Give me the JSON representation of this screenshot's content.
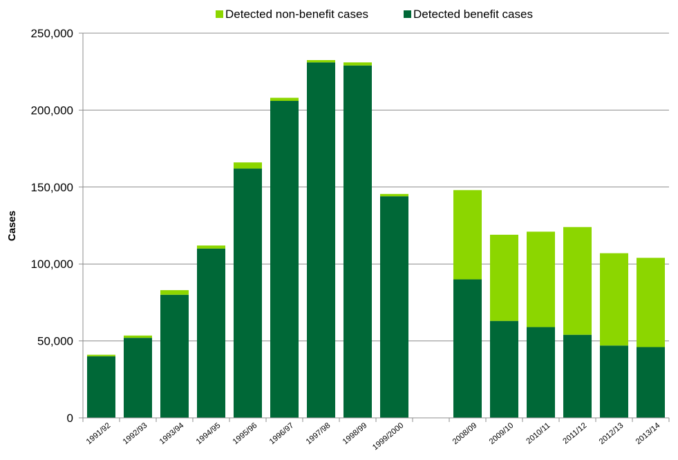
{
  "chart_data": {
    "type": "bar",
    "stacked": true,
    "title": "",
    "xlabel": "",
    "ylabel": "Cases",
    "ylim": [
      0,
      250000
    ],
    "yticks": [
      0,
      50000,
      100000,
      150000,
      200000,
      250000
    ],
    "ytick_labels": [
      "0",
      "50,000",
      "100,000",
      "150,000",
      "200,000",
      "250,000"
    ],
    "grid": true,
    "legend_position": "top-center",
    "categories": [
      "1991/92",
      "1992/93",
      "1993/94",
      "1994/95",
      "1995/96",
      "1996/97",
      "1997/98",
      "1998/99",
      "1999/2000",
      "",
      "2008/09",
      "2009/10",
      "2010/11",
      "2011/12",
      "2012/13",
      "2013/14"
    ],
    "series": [
      {
        "name": "Detected benefit cases",
        "color": "#006837",
        "values": [
          40000,
          52000,
          80000,
          110000,
          162000,
          206000,
          231000,
          229000,
          144000,
          null,
          90000,
          63000,
          59000,
          54000,
          47000,
          46000
        ]
      },
      {
        "name": "Detected non-benefit cases",
        "color": "#8cd600",
        "values": [
          1000,
          1500,
          3000,
          2000,
          4000,
          2000,
          1500,
          2000,
          1500,
          null,
          58000,
          56000,
          62000,
          70000,
          60000,
          58000
        ]
      }
    ],
    "legend": [
      {
        "name": "Detected non-benefit cases",
        "color": "#8cd600"
      },
      {
        "name": "Detected benefit cases",
        "color": "#006837"
      }
    ]
  }
}
